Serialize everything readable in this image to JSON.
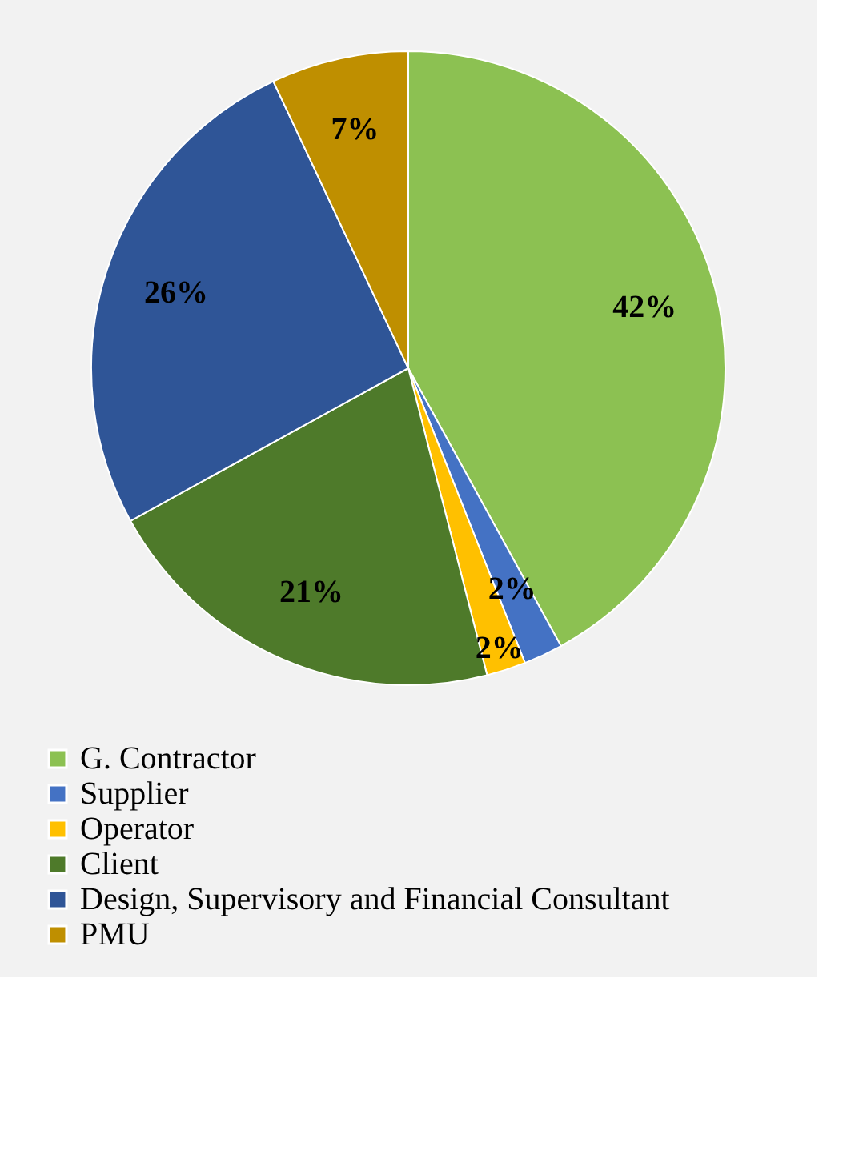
{
  "chart_data": {
    "type": "pie",
    "categories": [
      "G. Contractor",
      "Supplier",
      "Operator",
      "Client",
      "Design, Supervisory and Financial Consultant",
      "PMU"
    ],
    "values": [
      42,
      2,
      2,
      21,
      26,
      7
    ],
    "colors": [
      "#8cc152",
      "#4472c4",
      "#ffc000",
      "#4e7a2a",
      "#2f5597",
      "#bf8f00"
    ],
    "value_labels": [
      "42%",
      "2%",
      "2%",
      "21%",
      "26%",
      "7%"
    ],
    "legend": "bottom"
  }
}
